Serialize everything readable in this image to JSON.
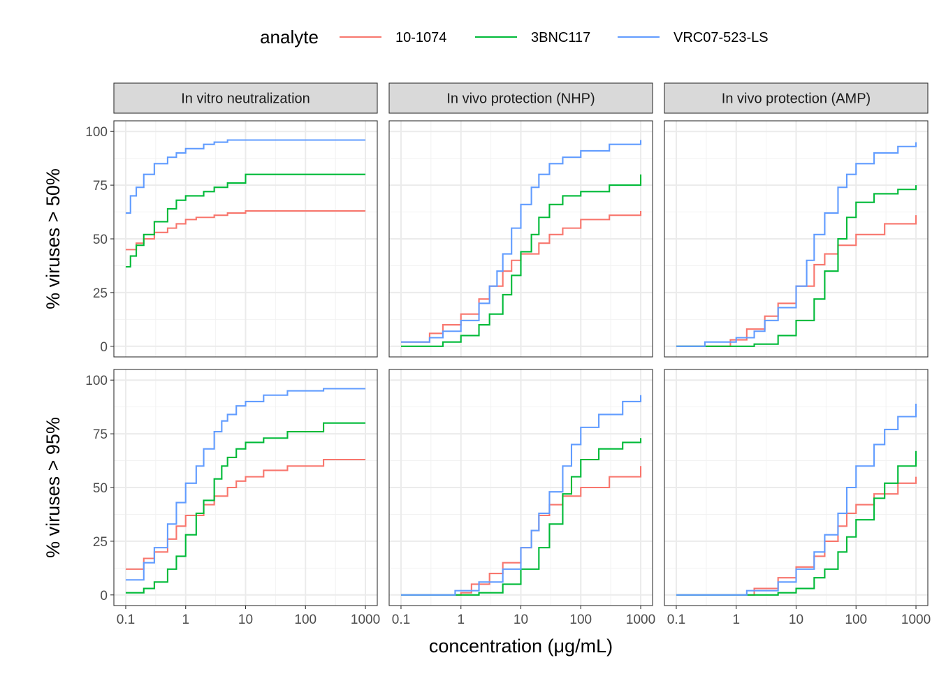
{
  "chart_data": {
    "type": "line",
    "step": true,
    "x_scale": "log10",
    "xlabel": "concentration (μg/mL)",
    "xlim": [
      0.1,
      1000
    ],
    "x_ticks": [
      0.1,
      1,
      10,
      100,
      1000
    ],
    "x_tick_labels": [
      "0.1",
      "1",
      "10",
      "100",
      "1000"
    ],
    "ylim": [
      0,
      100
    ],
    "y_ticks": [
      0,
      25,
      50,
      75,
      100
    ],
    "y_tick_labels": [
      "0",
      "25",
      "50",
      "75",
      "100"
    ],
    "grid": true,
    "legend": {
      "title": "analyte",
      "position": "top",
      "entries": [
        "10-1074",
        "3BNC117",
        "VRC07-523-LS"
      ]
    },
    "colors": {
      "10-1074": "#F8766D",
      "3BNC117": "#00BA38",
      "VRC07-523-LS": "#619CFF"
    },
    "columns": [
      "In vitro neutralization",
      "In vivo protection (NHP)",
      "In vivo protection (AMP)"
    ],
    "rows": [
      "% viruses > 50%",
      "% viruses > 95%"
    ],
    "panels": [
      {
        "column": "In vitro neutralization",
        "row": "% viruses > 50%",
        "series": [
          {
            "name": "10-1074",
            "x": [
              0.1,
              0.15,
              0.2,
              0.3,
              0.5,
              0.7,
              1,
              1.5,
              3,
              5,
              10,
              1000
            ],
            "y": [
              45,
              48,
              50,
              53,
              55,
              57,
              59,
              60,
              61,
              62,
              63,
              63
            ]
          },
          {
            "name": "3BNC117",
            "x": [
              0.1,
              0.12,
              0.15,
              0.2,
              0.3,
              0.5,
              0.7,
              1,
              2,
              3,
              5,
              10,
              1000
            ],
            "y": [
              37,
              42,
              47,
              52,
              58,
              64,
              68,
              70,
              72,
              74,
              76,
              80,
              80
            ]
          },
          {
            "name": "VRC07-523-LS",
            "x": [
              0.1,
              0.12,
              0.15,
              0.2,
              0.3,
              0.5,
              0.7,
              1,
              2,
              3,
              5,
              1000
            ],
            "y": [
              62,
              70,
              74,
              80,
              85,
              88,
              90,
              92,
              94,
              95,
              96,
              96
            ]
          }
        ]
      },
      {
        "column": "In vivo protection (NHP)",
        "row": "% viruses > 50%",
        "series": [
          {
            "name": "10-1074",
            "x": [
              0.1,
              0.3,
              0.5,
              1,
              2,
              3,
              5,
              7,
              10,
              20,
              30,
              50,
              100,
              300,
              1000
            ],
            "y": [
              2,
              6,
              10,
              15,
              22,
              28,
              35,
              40,
              43,
              48,
              52,
              55,
              59,
              61,
              63
            ]
          },
          {
            "name": "3BNC117",
            "x": [
              0.1,
              0.5,
              1,
              2,
              3,
              5,
              7,
              10,
              15,
              20,
              30,
              50,
              100,
              300,
              1000
            ],
            "y": [
              0,
              2,
              5,
              10,
              15,
              24,
              33,
              44,
              52,
              60,
              66,
              70,
              72,
              75,
              80
            ]
          },
          {
            "name": "VRC07-523-LS",
            "x": [
              0.1,
              0.3,
              0.5,
              1,
              2,
              3,
              4,
              5,
              7,
              10,
              15,
              20,
              30,
              50,
              100,
              300,
              1000
            ],
            "y": [
              2,
              4,
              7,
              12,
              20,
              28,
              35,
              43,
              55,
              66,
              74,
              80,
              85,
              88,
              91,
              94,
              96
            ]
          }
        ]
      },
      {
        "column": "In vivo protection (AMP)",
        "row": "% viruses > 50%",
        "series": [
          {
            "name": "10-1074",
            "x": [
              0.1,
              0.8,
              1.5,
              3,
              5,
              10,
              20,
              30,
              50,
              100,
              300,
              1000
            ],
            "y": [
              0,
              3,
              8,
              14,
              20,
              28,
              38,
              43,
              47,
              52,
              57,
              61
            ]
          },
          {
            "name": "3BNC117",
            "x": [
              0.1,
              2,
              5,
              10,
              20,
              30,
              50,
              70,
              100,
              200,
              500,
              1000
            ],
            "y": [
              0,
              1,
              5,
              12,
              22,
              35,
              50,
              60,
              67,
              71,
              73,
              75
            ]
          },
          {
            "name": "VRC07-523-LS",
            "x": [
              0.1,
              0.3,
              1,
              2,
              3,
              5,
              10,
              15,
              20,
              30,
              50,
              70,
              100,
              200,
              500,
              1000
            ],
            "y": [
              0,
              2,
              4,
              7,
              12,
              18,
              28,
              40,
              52,
              62,
              74,
              80,
              85,
              90,
              93,
              95
            ]
          }
        ]
      },
      {
        "column": "In vitro neutralization",
        "row": "% viruses > 95%",
        "series": [
          {
            "name": "10-1074",
            "x": [
              0.1,
              0.2,
              0.3,
              0.5,
              0.7,
              1,
              2,
              3,
              5,
              7,
              10,
              20,
              50,
              200,
              1000
            ],
            "y": [
              12,
              17,
              20,
              26,
              32,
              37,
              42,
              46,
              50,
              53,
              55,
              58,
              60,
              63,
              63
            ]
          },
          {
            "name": "3BNC117",
            "x": [
              0.1,
              0.2,
              0.3,
              0.5,
              0.7,
              1,
              1.5,
              2,
              3,
              4,
              5,
              7,
              10,
              20,
              50,
              200,
              1000
            ],
            "y": [
              1,
              3,
              6,
              12,
              18,
              28,
              38,
              44,
              54,
              60,
              64,
              68,
              71,
              73,
              76,
              80,
              80
            ]
          },
          {
            "name": "VRC07-523-LS",
            "x": [
              0.1,
              0.2,
              0.3,
              0.5,
              0.7,
              1,
              1.5,
              2,
              3,
              4,
              5,
              7,
              10,
              20,
              50,
              200,
              1000
            ],
            "y": [
              7,
              15,
              22,
              33,
              43,
              52,
              60,
              68,
              76,
              81,
              84,
              88,
              90,
              93,
              95,
              96,
              96
            ]
          }
        ]
      },
      {
        "column": "In vivo protection (NHP)",
        "row": "% viruses > 95%",
        "series": [
          {
            "name": "10-1074",
            "x": [
              0.1,
              1,
              1.5,
              3,
              5,
              10,
              15,
              20,
              30,
              50,
              100,
              300,
              1000
            ],
            "y": [
              0,
              1,
              5,
              10,
              15,
              22,
              30,
              37,
              42,
              46,
              50,
              55,
              60
            ]
          },
          {
            "name": "3BNC117",
            "x": [
              0.1,
              2,
              5,
              10,
              20,
              30,
              50,
              70,
              100,
              200,
              500,
              1000
            ],
            "y": [
              0,
              1,
              5,
              12,
              22,
              33,
              47,
              55,
              63,
              68,
              71,
              73
            ]
          },
          {
            "name": "VRC07-523-LS",
            "x": [
              0.1,
              0.8,
              2,
              5,
              10,
              15,
              20,
              30,
              50,
              70,
              100,
              200,
              500,
              1000
            ],
            "y": [
              0,
              2,
              6,
              12,
              22,
              30,
              38,
              48,
              60,
              70,
              78,
              84,
              90,
              93
            ]
          }
        ]
      },
      {
        "column": "In vivo protection (AMP)",
        "row": "% viruses > 95%",
        "series": [
          {
            "name": "10-1074",
            "x": [
              0.1,
              2,
              5,
              10,
              20,
              30,
              50,
              70,
              100,
              200,
              500,
              1000
            ],
            "y": [
              0,
              3,
              8,
              13,
              18,
              25,
              32,
              38,
              42,
              47,
              52,
              55
            ]
          },
          {
            "name": "3BNC117",
            "x": [
              0.1,
              5,
              10,
              20,
              30,
              50,
              70,
              100,
              200,
              300,
              500,
              1000
            ],
            "y": [
              0,
              1,
              3,
              8,
              12,
              20,
              27,
              35,
              45,
              52,
              60,
              67
            ]
          },
          {
            "name": "VRC07-523-LS",
            "x": [
              0.1,
              1.5,
              5,
              10,
              20,
              30,
              50,
              70,
              100,
              200,
              300,
              500,
              1000
            ],
            "y": [
              0,
              2,
              6,
              12,
              20,
              28,
              38,
              50,
              60,
              70,
              77,
              83,
              89
            ]
          }
        ]
      }
    ]
  }
}
